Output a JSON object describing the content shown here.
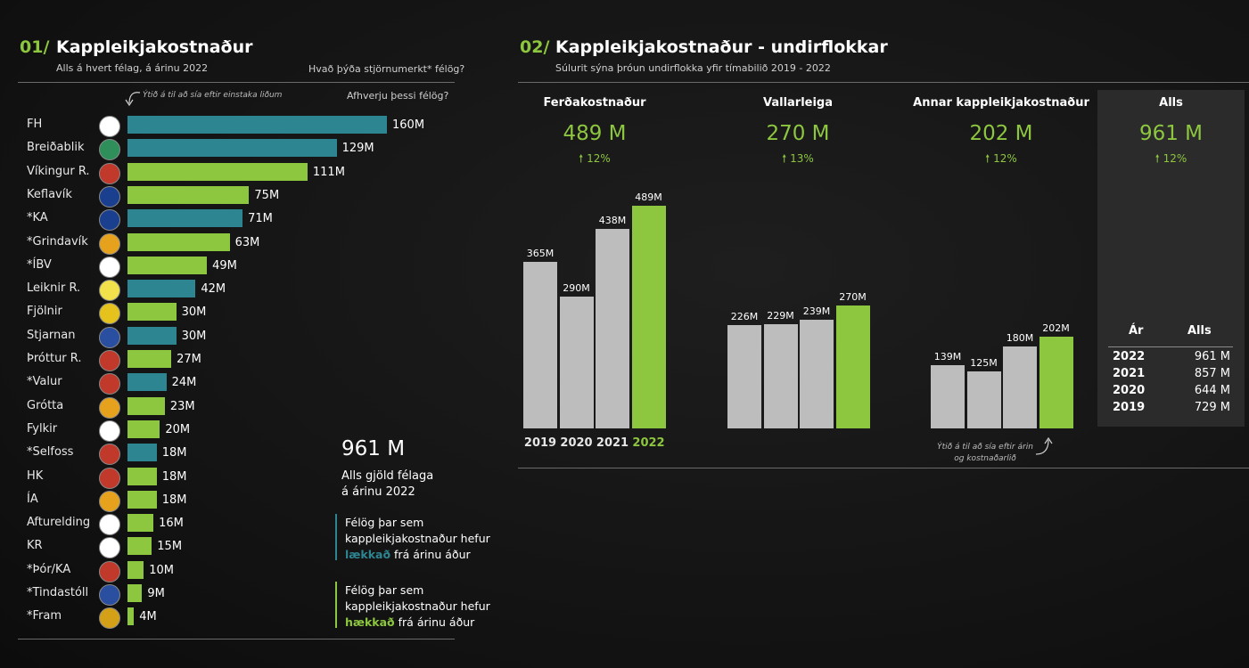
{
  "section1": {
    "num": "01/",
    "title": "Kappleikjakostnaður",
    "subtitle": "Alls á hvert félag, á árinu 2022",
    "link1": "Hvað þýða stjörnumerkt* félög?",
    "link2": "Afhverju þessi félög?",
    "hint": "Ýtið á til að sía eftir einstaka liðum"
  },
  "chart_data": [
    {
      "type": "bar",
      "orientation": "horizontal",
      "categories": [
        "FH",
        "Breiðablik",
        "Víkingur R.",
        "Keflavík",
        "*KA",
        "*Grindavík",
        "*ÍBV",
        "Leiknir R.",
        "Fjölnir",
        "Stjarnan",
        "Þróttur R.",
        "*Valur",
        "Grótta",
        "Fylkir",
        "*Selfoss",
        "HK",
        "ÍA",
        "Afturelding",
        "KR",
        "*Þór/KA",
        "*Tindastóll",
        "*Fram"
      ],
      "values": [
        160,
        129,
        111,
        75,
        71,
        63,
        49,
        42,
        30,
        30,
        27,
        24,
        23,
        20,
        18,
        18,
        18,
        16,
        15,
        10,
        9,
        4
      ],
      "labels": [
        "160M",
        "129M",
        "111M",
        "75M",
        "71M",
        "63M",
        "49M",
        "42M",
        "30M",
        "30M",
        "27M",
        "24M",
        "23M",
        "20M",
        "18M",
        "18M",
        "18M",
        "16M",
        "15M",
        "10M",
        "9M",
        "4M"
      ],
      "status": [
        "down",
        "down",
        "up",
        "up",
        "down",
        "up",
        "up",
        "down",
        "up",
        "down",
        "up",
        "down",
        "up",
        "up",
        "down",
        "up",
        "up",
        "up",
        "up",
        "up",
        "up",
        "up"
      ],
      "logo_colors": [
        "#ffffff",
        "#2f8f5b",
        "#c0392b",
        "#1a3f8f",
        "#1a3f8f",
        "#e6a21c",
        "#ffffff",
        "#f2e14b",
        "#e6c21c",
        "#2a4fa0",
        "#c0392b",
        "#c0392b",
        "#e6a21c",
        "#ffffff",
        "#c0392b",
        "#c0392b",
        "#e6a21c",
        "#ffffff",
        "#ffffff",
        "#c0392b",
        "#2a4fa0",
        "#d4a017"
      ],
      "colors": {
        "down": "#2e8592",
        "up": "#8dc63f"
      }
    },
    {
      "type": "bar",
      "title": "Ferðakostnaður",
      "categories": [
        "2019",
        "2020",
        "2021",
        "2022"
      ],
      "values": [
        365,
        290,
        438,
        489
      ],
      "labels": [
        "365M",
        "290M",
        "438M",
        "489M"
      ]
    },
    {
      "type": "bar",
      "title": "Vallarleiga",
      "categories": [
        "2019",
        "2020",
        "2021",
        "2022"
      ],
      "values": [
        226,
        229,
        239,
        270
      ],
      "labels": [
        "226M",
        "229M",
        "239M",
        "270M"
      ]
    },
    {
      "type": "bar",
      "title": "Annar kappleikjakostnaður",
      "categories": [
        "2019",
        "2020",
        "2021",
        "2022"
      ],
      "values": [
        139,
        125,
        180,
        202
      ],
      "labels": [
        "139M",
        "125M",
        "180M",
        "202M"
      ]
    }
  ],
  "summary": {
    "total": "961 M",
    "desc1": "Alls gjöld félaga",
    "desc2": "á árinu 2022",
    "legend_down": {
      "line1": "Félög þar sem",
      "line2": "kappleikjakostnaður hefur",
      "bold": "lækkað",
      "rest": "frá árinu áður"
    },
    "legend_up": {
      "line1": "Félög þar sem",
      "line2": "kappleikjakostnaður hefur",
      "bold": "hækkað",
      "rest": "frá árinu áður"
    }
  },
  "section2": {
    "num": "02/",
    "title": "Kappleikjakostnaður - undirflokkar",
    "subtitle": "Súlurit sýna þróun undirflokka yfir tímabilið 2019 - 2022",
    "hint_line1": "Ýtið á til að sía eftir árin",
    "hint_line2": "og kostnaðarlið",
    "cards": [
      {
        "title": "Ferðakostnaður",
        "value": "489 M",
        "pct": "🠕 12%"
      },
      {
        "title": "Vallarleiga",
        "value": "270 M",
        "pct": "🠕 13%"
      },
      {
        "title": "Annar kappleikjakostnaður",
        "value": "202 M",
        "pct": "🠕 12%"
      }
    ],
    "total_card": {
      "title": "Alls",
      "value": "961 M",
      "pct": "🠕 12%",
      "col_year": "Ár",
      "col_total": "Alls",
      "rows": [
        {
          "year": "2022",
          "total": "961 M"
        },
        {
          "year": "2021",
          "total": "857 M"
        },
        {
          "year": "2020",
          "total": "644 M"
        },
        {
          "year": "2019",
          "total": "729 M"
        }
      ]
    }
  },
  "colors": {
    "accent": "#8dc63f",
    "teal": "#2e8592",
    "grey_bar": "#bdbdbd",
    "panel": "#2b2b2b"
  }
}
